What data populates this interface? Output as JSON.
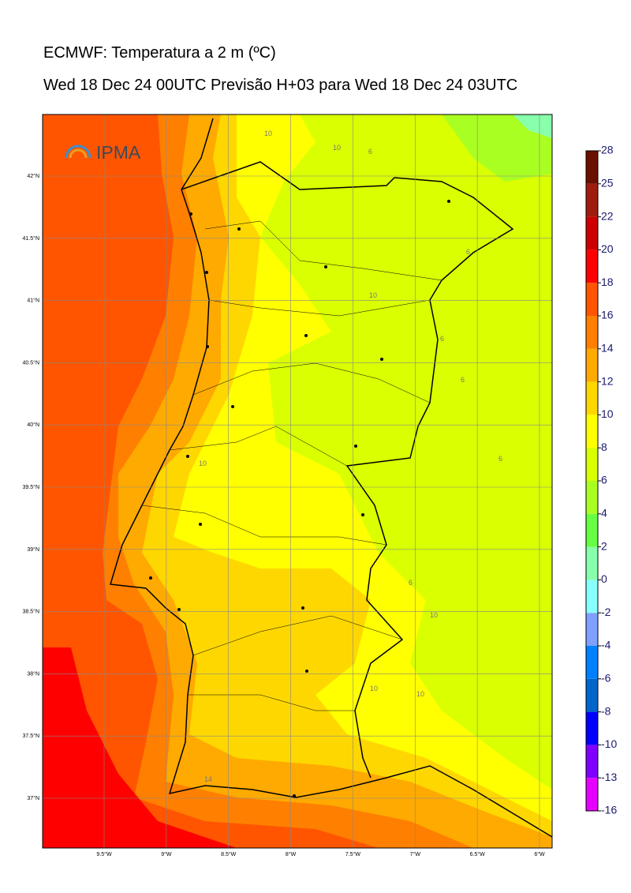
{
  "header": {
    "title": "ECMWF: Temperatura a 2 m (ºC)",
    "subtitle": "Wed 18 Dec 24 00UTC Previsão H+03 para Wed 18 Dec 24 03UTC"
  },
  "logo": "IPMA",
  "map": {
    "lat_ticks": [
      {
        "value": 42,
        "label": "42°N"
      },
      {
        "value": 41.5,
        "label": "41.5°N"
      },
      {
        "value": 41,
        "label": "41°N"
      },
      {
        "value": 40.5,
        "label": "40.5°N"
      },
      {
        "value": 40,
        "label": "40°N"
      },
      {
        "value": 39.5,
        "label": "39.5°N"
      },
      {
        "value": 39,
        "label": "39°N"
      },
      {
        "value": 38.5,
        "label": "38.5°N"
      },
      {
        "value": 38,
        "label": "38°N"
      },
      {
        "value": 37.5,
        "label": "37.5°N"
      },
      {
        "value": 37,
        "label": "37°N"
      }
    ],
    "lon_ticks": [
      {
        "value": -9.5,
        "label": "9.5°W"
      },
      {
        "value": -9,
        "label": "9°W"
      },
      {
        "value": -8.5,
        "label": "8.5°W"
      },
      {
        "value": -8,
        "label": "8°W"
      },
      {
        "value": -7.5,
        "label": "7.5°W"
      },
      {
        "value": -7,
        "label": "7°W"
      },
      {
        "value": -6.5,
        "label": "6.5°W"
      },
      {
        "value": -6,
        "label": "6°W"
      }
    ],
    "contour_labels": [
      "10",
      "10",
      "6",
      "6",
      "10",
      "6",
      "6",
      "6",
      "10",
      "10",
      "10",
      "14",
      "10",
      "6"
    ]
  },
  "colorbar": {
    "levels": [
      -16,
      -13,
      -10,
      -8,
      -6,
      -4,
      -2,
      0,
      2,
      4,
      6,
      8,
      10,
      12,
      14,
      16,
      18,
      20,
      22,
      25,
      28
    ],
    "colors": [
      "#e600ff",
      "#8000ff",
      "#0000ff",
      "#0066cc",
      "#0080ff",
      "#7fa0ff",
      "#88ffff",
      "#88ffaa",
      "#66ff44",
      "#aaff22",
      "#d9ff00",
      "#ffff00",
      "#ffd700",
      "#ffaa00",
      "#ff8000",
      "#ff5500",
      "#ff0000",
      "#cc0000",
      "#a01c0c",
      "#6b1000"
    ]
  }
}
